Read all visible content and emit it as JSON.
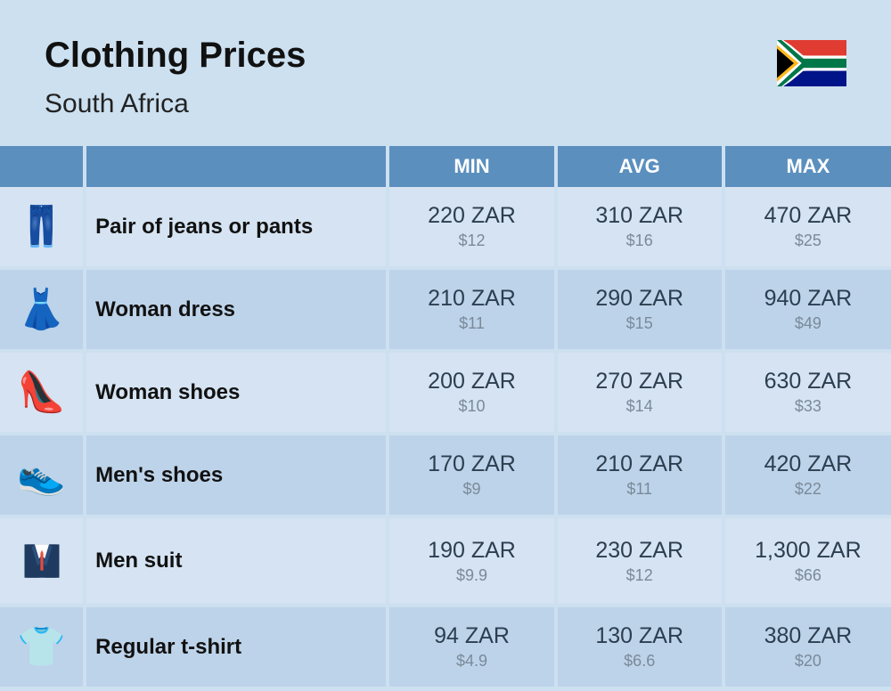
{
  "header": {
    "title": "Clothing Prices",
    "subtitle": "South Africa"
  },
  "columns": {
    "min": "MIN",
    "avg": "AVG",
    "max": "MAX"
  },
  "rows": [
    {
      "icon": "👖",
      "name": "Pair of jeans or pants",
      "min_zar": "220 ZAR",
      "min_usd": "$12",
      "avg_zar": "310 ZAR",
      "avg_usd": "$16",
      "max_zar": "470 ZAR",
      "max_usd": "$25"
    },
    {
      "icon": "👗",
      "name": "Woman dress",
      "min_zar": "210 ZAR",
      "min_usd": "$11",
      "avg_zar": "290 ZAR",
      "avg_usd": "$15",
      "max_zar": "940 ZAR",
      "max_usd": "$49"
    },
    {
      "icon": "👠",
      "name": "Woman shoes",
      "min_zar": "200 ZAR",
      "min_usd": "$10",
      "avg_zar": "270 ZAR",
      "avg_usd": "$14",
      "max_zar": "630 ZAR",
      "max_usd": "$33"
    },
    {
      "icon": "👟",
      "name": "Men's shoes",
      "min_zar": "170 ZAR",
      "min_usd": "$9",
      "avg_zar": "210 ZAR",
      "avg_usd": "$11",
      "max_zar": "420 ZAR",
      "max_usd": "$22"
    },
    {
      "icon": "suit",
      "name": "Men suit",
      "min_zar": "190 ZAR",
      "min_usd": "$9.9",
      "avg_zar": "230 ZAR",
      "avg_usd": "$12",
      "max_zar": "1,300 ZAR",
      "max_usd": "$66"
    },
    {
      "icon": "👕",
      "name": "Regular t-shirt",
      "min_zar": "94 ZAR",
      "min_usd": "$4.9",
      "avg_zar": "130 ZAR",
      "avg_usd": "$6.6",
      "max_zar": "380 ZAR",
      "max_usd": "$20"
    }
  ],
  "styling": {
    "background": "#cce0f0",
    "header_bg": "#5b8fbe",
    "row_light": "#d5e3f2",
    "row_dark": "#bdd3e9",
    "title_color": "#111",
    "price_color": "#2c3e50",
    "sub_color": "#7a8a9a",
    "title_fontsize": 40,
    "subtitle_fontsize": 30,
    "header_fontsize": 22,
    "name_fontsize": 24,
    "price_fontsize": 25,
    "sub_fontsize": 18
  }
}
